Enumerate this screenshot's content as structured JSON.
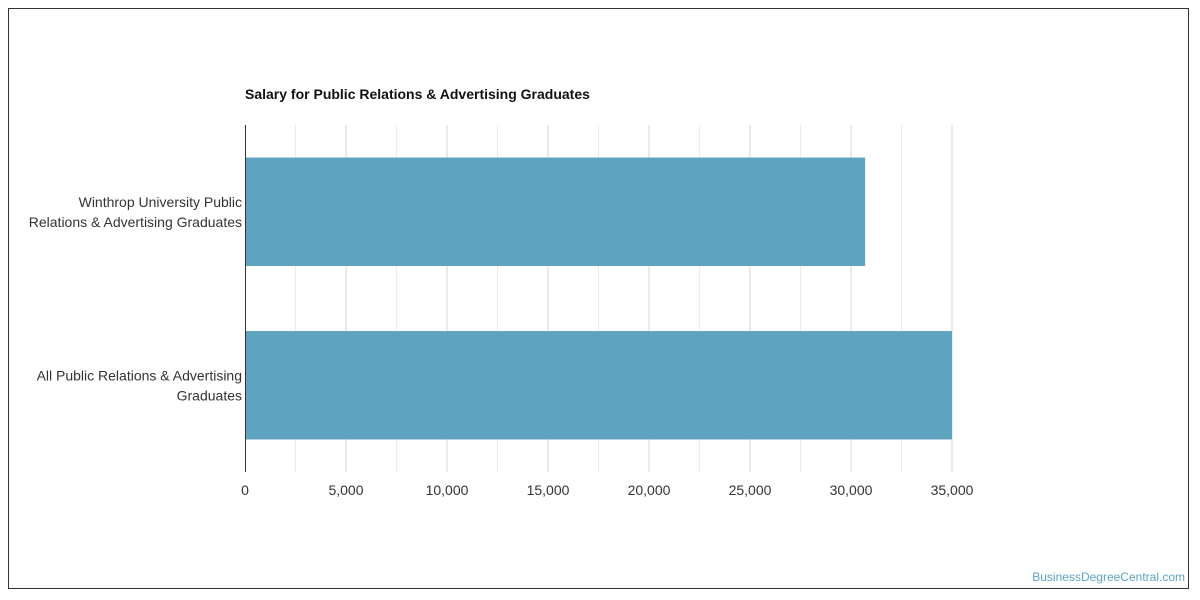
{
  "chart_data": {
    "type": "bar",
    "orientation": "horizontal",
    "title": "Salary for Public Relations & Advertising Graduates",
    "categories": [
      [
        "Winthrop University Public",
        "Relations & Advertising Graduates"
      ],
      [
        "All Public Relations & Advertising",
        "Graduates"
      ]
    ],
    "values": [
      30700,
      35000
    ],
    "xlim": [
      0,
      35000
    ],
    "xticks": [
      0,
      5000,
      10000,
      15000,
      20000,
      25000,
      30000,
      35000
    ],
    "xtick_labels": [
      "0",
      "5,000",
      "10,000",
      "15,000",
      "20,000",
      "25,000",
      "30,000",
      "35,000"
    ],
    "xlabel": "",
    "ylabel": "",
    "grid": true,
    "legend": "none",
    "bar_color": "#5ea3bf"
  },
  "watermark": "BusinessDegreeCentral.com"
}
